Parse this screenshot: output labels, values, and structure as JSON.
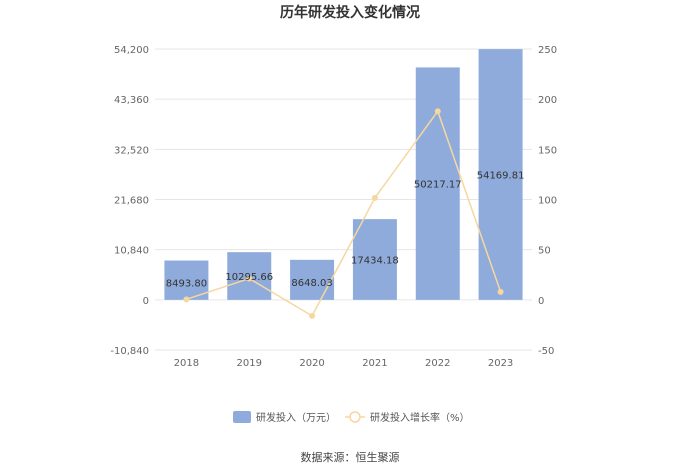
{
  "chart_data": {
    "type": "bar",
    "title": "历年研发投入变化情况",
    "categories": [
      "2018",
      "2019",
      "2020",
      "2021",
      "2022",
      "2023"
    ],
    "series": [
      {
        "name": "研发投入（万元）",
        "type": "bar",
        "axis": "left",
        "color": "#8eabdb",
        "values": [
          8493.8,
          10295.66,
          8648.03,
          17434.18,
          50217.17,
          54169.81
        ],
        "labels": [
          "8493.80",
          "10295.66",
          "8648.03",
          "17434.18",
          "50217.17",
          "54169.81"
        ]
      },
      {
        "name": "研发投入增长率（%）",
        "type": "line",
        "axis": "right",
        "color": "#f6d7a0",
        "values": [
          0.5,
          21.2,
          -16.0,
          101.6,
          188.0,
          7.9
        ]
      }
    ],
    "left_axis": {
      "ylim": [
        -10840,
        54200
      ],
      "ticks": [
        54200,
        43360,
        32520,
        21680,
        10840,
        0,
        -10840
      ],
      "tick_labels": [
        "54,200",
        "43,360",
        "32,520",
        "21,680",
        "10,840",
        "0",
        "-10,840"
      ]
    },
    "right_axis": {
      "ylim": [
        -50,
        250
      ],
      "ticks": [
        250,
        200,
        150,
        100,
        50,
        0,
        -50
      ],
      "tick_labels": [
        "250",
        "200",
        "150",
        "100",
        "50",
        "0",
        "-50"
      ]
    },
    "grid": true,
    "legend": "bottom",
    "source": "数据来源：恒生聚源"
  }
}
